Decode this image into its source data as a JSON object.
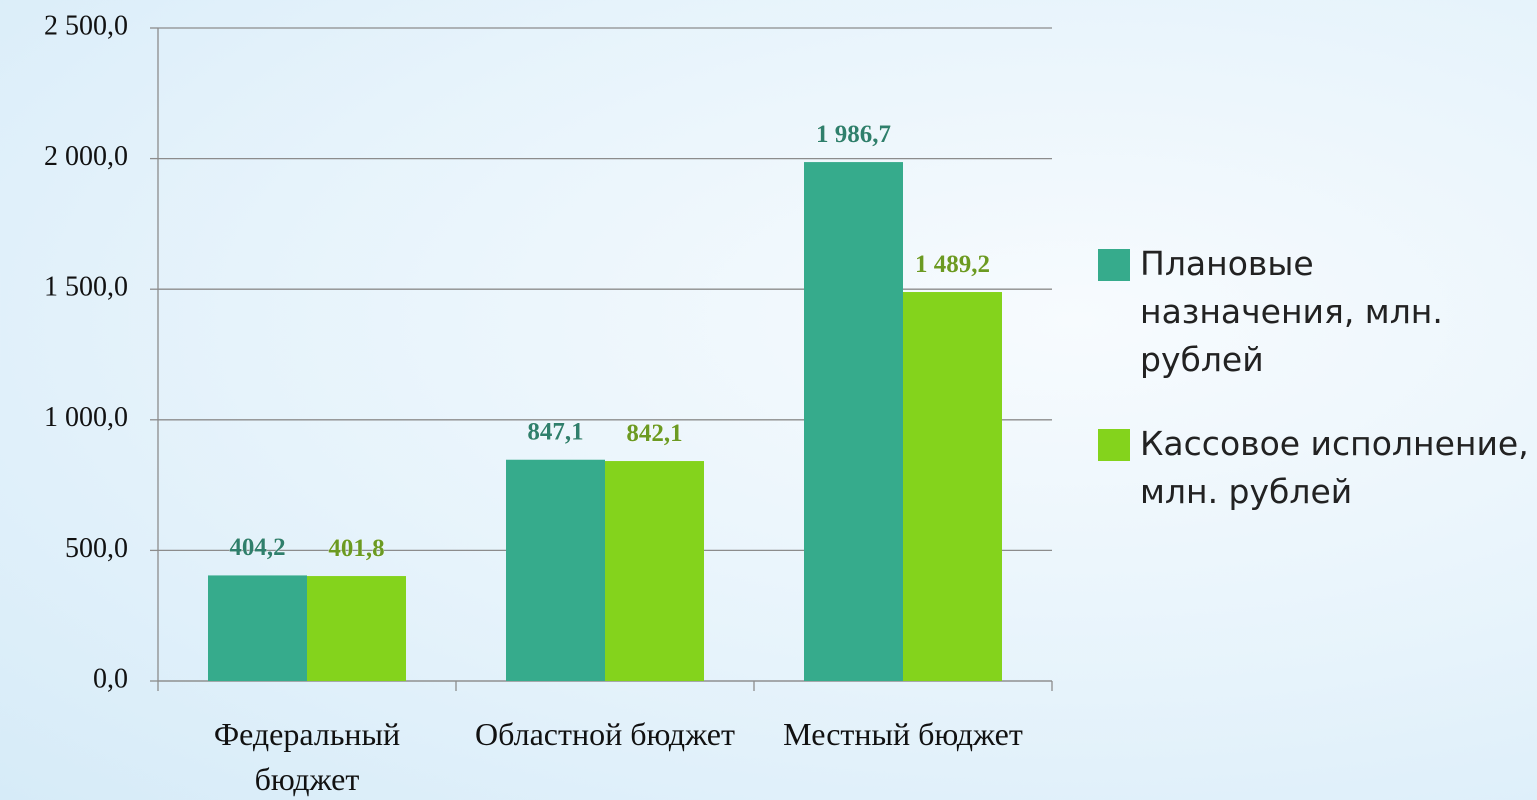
{
  "chart_data": {
    "type": "bar",
    "categories": [
      "Федеральный бюджет",
      "Областной бюджет",
      "Местный бюджет"
    ],
    "series": [
      {
        "name": "Плановые назначения, млн. рублей",
        "color": "#36ab8c",
        "label_color": "#2f7f6c",
        "values": [
          404.2,
          847.1,
          1986.7
        ],
        "value_labels": [
          "404,2",
          "847,1",
          "1 986,7"
        ]
      },
      {
        "name": "Кассовое исполнение, млн. рублей",
        "color": "#84d31c",
        "label_color": "#6b9a22",
        "values": [
          401.8,
          842.1,
          1489.2
        ],
        "value_labels": [
          "401,8",
          "842,1",
          "1 489,2"
        ]
      }
    ],
    "ylim": [
      0,
      2500
    ],
    "yticks": [
      {
        "value": 0,
        "label": "0,0"
      },
      {
        "value": 500,
        "label": "500,0"
      },
      {
        "value": 1000,
        "label": "1 000,0"
      },
      {
        "value": 1500,
        "label": "1 500,0"
      },
      {
        "value": 2000,
        "label": "2 000,0"
      },
      {
        "value": 2500,
        "label": "2 500,0"
      }
    ],
    "grid": true,
    "legend": "right"
  }
}
